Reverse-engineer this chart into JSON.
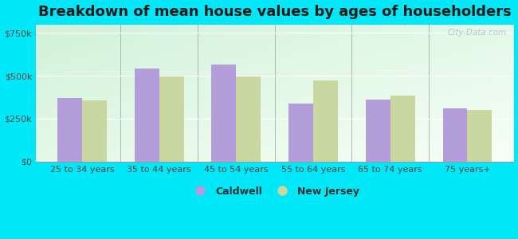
{
  "title": "Breakdown of mean house values by ages of householders",
  "categories": [
    "25 to 34 years",
    "35 to 44 years",
    "45 to 54 years",
    "55 to 64 years",
    "65 to 74 years",
    "75 years+"
  ],
  "caldwell_values": [
    370000,
    545000,
    565000,
    340000,
    360000,
    310000
  ],
  "nj_values": [
    355000,
    495000,
    495000,
    475000,
    385000,
    300000
  ],
  "caldwell_color": "#b39ddb",
  "nj_color": "#c8d8a0",
  "background_outer": "#00e8f8",
  "yticks": [
    0,
    250000,
    500000,
    750000
  ],
  "ytick_labels": [
    "$0",
    "$250k",
    "$500k",
    "$750k"
  ],
  "ylim": [
    0,
    800000
  ],
  "legend_labels": [
    "Caldwell",
    "New Jersey"
  ],
  "title_fontsize": 13,
  "bar_width": 0.32,
  "watermark": "City-Data.com"
}
